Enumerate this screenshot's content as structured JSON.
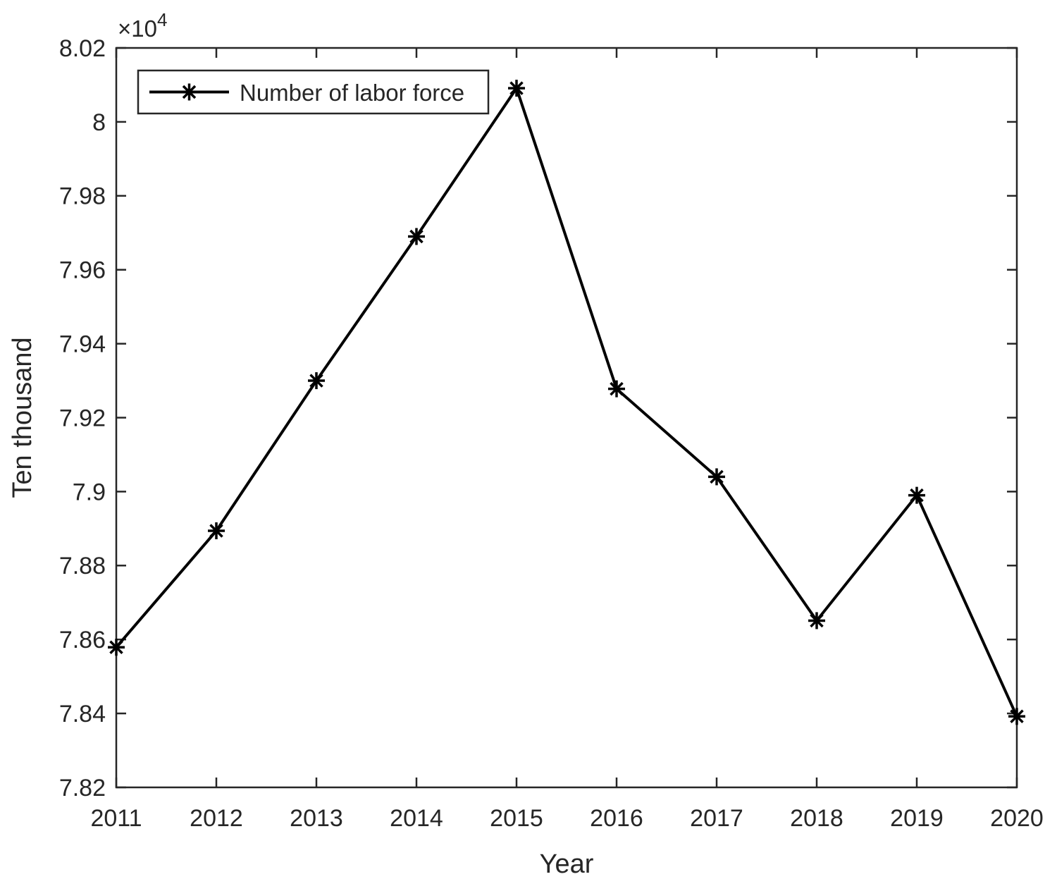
{
  "chart_data": {
    "type": "line",
    "title": "",
    "xlabel": "Year",
    "ylabel": "Ten thousand",
    "x": [
      2011,
      2012,
      2013,
      2014,
      2015,
      2016,
      2017,
      2018,
      2019,
      2020
    ],
    "series": [
      {
        "name": "Number of labor force",
        "values": [
          78579,
          78894,
          79300,
          79690,
          80091,
          79278,
          79040,
          78651,
          78990,
          78392
        ],
        "marker": "asterisk",
        "color": "#000000"
      }
    ],
    "xlim": [
      2011,
      2020
    ],
    "ylim": [
      78200,
      80200
    ],
    "ytick_values": [
      78200,
      78400,
      78600,
      78800,
      79000,
      79200,
      79400,
      79600,
      79800,
      80000,
      80200
    ],
    "ytick_labels": [
      "7.82",
      "7.84",
      "7.86",
      "7.88",
      "7.9",
      "7.92",
      "7.94",
      "7.96",
      "7.98",
      "8",
      "8.02"
    ],
    "xtick_labels": [
      "2011",
      "2012",
      "2013",
      "2014",
      "2015",
      "2016",
      "2017",
      "2018",
      "2019",
      "2020"
    ],
    "y_exponent": {
      "base": "×10",
      "power": "4"
    },
    "legend": {
      "position": "top-left",
      "entries": [
        {
          "label": "Number of labor force",
          "marker": "asterisk"
        }
      ]
    },
    "grid": false,
    "frame": "box",
    "tick_direction": "in",
    "colors": {
      "background": "#ffffff",
      "axis": "#262626",
      "line": "#000000",
      "legend_border": "#262626"
    }
  }
}
